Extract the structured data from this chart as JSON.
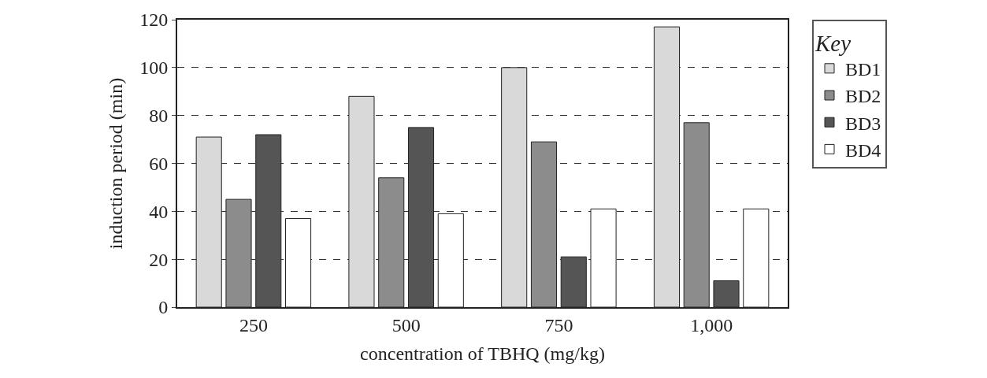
{
  "chart_data": {
    "type": "bar",
    "xlabel": "concentration of TBHQ (mg/kg)",
    "ylabel": "induction period (min)",
    "legend_title": "Key",
    "categories": [
      "250",
      "500",
      "750",
      "1,000"
    ],
    "series": [
      {
        "name": "BD1",
        "color": "#d9d9d9",
        "values": [
          71,
          88,
          100,
          117
        ]
      },
      {
        "name": "BD2",
        "color": "#8c8c8c",
        "values": [
          45,
          54,
          69,
          77
        ]
      },
      {
        "name": "BD3",
        "color": "#555555",
        "values": [
          72,
          75,
          21,
          11
        ]
      },
      {
        "name": "BD4",
        "color": "#ffffff",
        "values": [
          37,
          39,
          41,
          41
        ]
      }
    ],
    "ylim": [
      0,
      120
    ],
    "yticks": [
      0,
      20,
      40,
      60,
      80,
      100,
      120
    ],
    "grid": "y",
    "legend": "top right"
  }
}
